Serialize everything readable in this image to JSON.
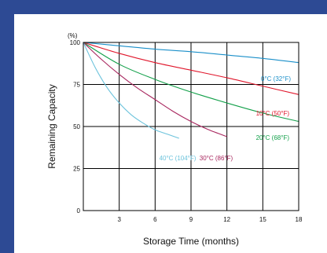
{
  "background_color": "#2d4a94",
  "chart_data": {
    "type": "line",
    "title": "",
    "xlabel": "Storage Time (months)",
    "ylabel": "Remaining Capacity",
    "y_unit": "(%)",
    "xlim": [
      0,
      18
    ],
    "ylim": [
      0,
      100
    ],
    "x_ticks": [
      3,
      6,
      9,
      12,
      15,
      18
    ],
    "y_ticks": [
      0,
      25,
      50,
      75,
      100
    ],
    "grid": true,
    "series": [
      {
        "name": "0°C (32°F)",
        "color": "#1a8fc9",
        "x": [
          0,
          3,
          6,
          9,
          12,
          15,
          18
        ],
        "values": [
          100,
          98,
          96,
          94.5,
          92.5,
          90.5,
          88
        ]
      },
      {
        "name": "10°C (50°F)",
        "color": "#e0162b",
        "x": [
          0,
          3,
          6,
          9,
          12,
          15,
          18
        ],
        "values": [
          100,
          93.5,
          88,
          83.5,
          79,
          74,
          69
        ]
      },
      {
        "name": "20°C (68°F)",
        "color": "#13a04a",
        "x": [
          0,
          3,
          6,
          9,
          12,
          15,
          18
        ],
        "values": [
          100,
          87,
          78,
          70.5,
          64,
          58,
          53
        ]
      },
      {
        "name": "30°C (86°F)",
        "color": "#a8265e",
        "x": [
          0,
          1.5,
          3,
          4.5,
          6,
          7.5,
          9,
          10.5,
          12
        ],
        "values": [
          100,
          90,
          81,
          73,
          66,
          59,
          53,
          48,
          44
        ]
      },
      {
        "name": "40°C (104°F)",
        "color": "#6cc3dc",
        "x": [
          0,
          1,
          2,
          3,
          4,
          5,
          6,
          7,
          8
        ],
        "values": [
          100,
          85,
          73,
          64,
          57,
          52,
          48,
          45.5,
          43
        ]
      }
    ]
  }
}
